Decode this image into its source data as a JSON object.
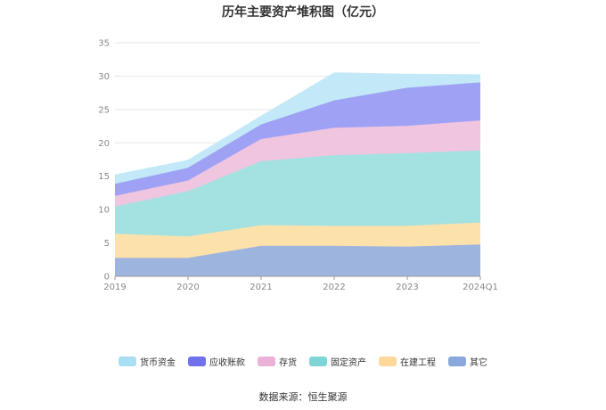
{
  "chart_data": {
    "type": "area",
    "stacked": true,
    "title": "历年主要资产堆积图（亿元）",
    "xlabel": "",
    "ylabel": "",
    "x": [
      "2019",
      "2020",
      "2021",
      "2022",
      "2023",
      "2024Q1"
    ],
    "ylim": [
      0,
      35
    ],
    "yticks": [
      "0",
      "5",
      "10",
      "15",
      "20",
      "25",
      "30",
      "35"
    ],
    "grid": true,
    "legend_position": "bottom",
    "series": [
      {
        "name": "其它",
        "color": "#9db4df",
        "values": [
          2.7,
          2.7,
          4.5,
          4.5,
          4.4,
          4.7
        ]
      },
      {
        "name": "在建工程",
        "color": "#fde1ab",
        "values": [
          3.6,
          3.2,
          3.1,
          3.0,
          3.1,
          3.3
        ]
      },
      {
        "name": "固定资产",
        "color": "#a4e1e1",
        "values": [
          4.1,
          6.8,
          9.6,
          10.6,
          10.9,
          10.8
        ]
      },
      {
        "name": "存货",
        "color": "#f0c5e0",
        "values": [
          1.6,
          1.6,
          3.3,
          4.1,
          4.1,
          4.5
        ]
      },
      {
        "name": "应收账款",
        "color": "#9ea1f4",
        "values": [
          1.8,
          1.9,
          2.2,
          4.1,
          5.7,
          5.7
        ]
      },
      {
        "name": "货币资金",
        "color": "#c3e8f8",
        "values": [
          1.4,
          1.2,
          1.3,
          4.2,
          2.1,
          1.2
        ]
      }
    ],
    "legend": [
      {
        "name": "货币资金",
        "color": "#a8dff5"
      },
      {
        "name": "应收账款",
        "color": "#7171ee"
      },
      {
        "name": "存货",
        "color": "#ebb1d8"
      },
      {
        "name": "固定资产",
        "color": "#7fd5d5"
      },
      {
        "name": "在建工程",
        "color": "#fdd89a"
      },
      {
        "name": "其它",
        "color": "#8aa8dc"
      }
    ]
  },
  "source_text": "数据来源：恒生聚源"
}
